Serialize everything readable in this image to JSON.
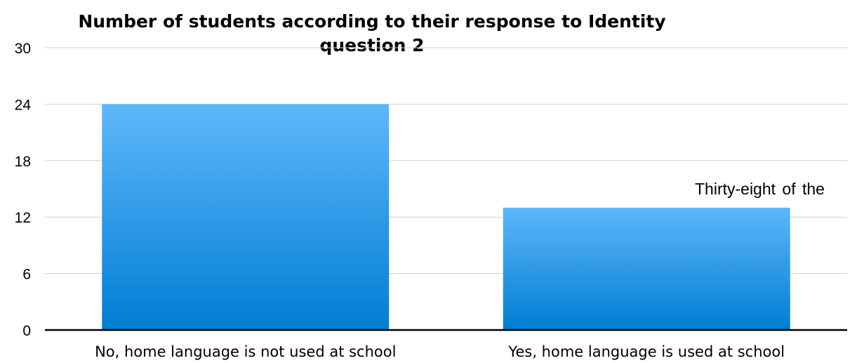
{
  "chart_data": {
    "type": "bar",
    "title": "Number of students according to their response to Identity question 2",
    "categories": [
      "No, home language is not used at school",
      "Yes, home language is used at school"
    ],
    "values": [
      24,
      13
    ],
    "ylim": [
      0,
      30
    ],
    "yticks": [
      0,
      6,
      12,
      18,
      24,
      30
    ],
    "xlabel": "",
    "ylabel": "",
    "grid": true,
    "legend": "none",
    "bar_gradient": [
      "#5eb7fa",
      "#007dd3"
    ],
    "annotation": "Thirty-eight of the"
  }
}
